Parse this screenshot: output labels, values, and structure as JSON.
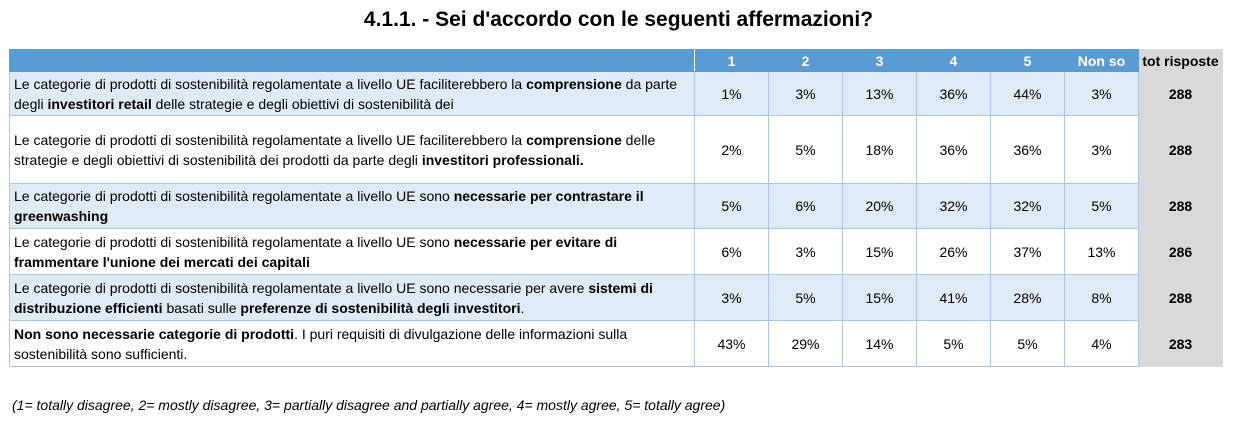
{
  "title": "4.1.1. - Sei d'accordo con le seguenti affermazioni?",
  "table": {
    "headers": [
      "",
      "1",
      "2",
      "3",
      "4",
      "5",
      "Non so",
      "tot risposte"
    ],
    "rows": [
      {
        "segments": [
          {
            "text": "Le categorie di prodotti di sostenibilità regolamentate a livello UE faciliterebbero la ",
            "bold": false
          },
          {
            "text": "comprensione",
            "bold": true
          },
          {
            "text": " da parte degli ",
            "bold": false
          },
          {
            "text": "investitori retail",
            "bold": true
          },
          {
            "text": " delle strategie e degli obiettivi di sostenibilità dei",
            "bold": false
          }
        ],
        "values": [
          "1%",
          "3%",
          "13%",
          "36%",
          "44%",
          "3%"
        ],
        "total": "288"
      },
      {
        "segments": [
          {
            "text": "Le categorie di prodotti di sostenibilità regolamentate a livello UE faciliterebbero la ",
            "bold": false
          },
          {
            "text": "comprensione",
            "bold": true
          },
          {
            "text": " delle strategie e degli obiettivi di sostenibilità dei prodotti da parte degli ",
            "bold": false
          },
          {
            "text": "investitori professionali.",
            "bold": true
          }
        ],
        "values": [
          "2%",
          "5%",
          "18%",
          "36%",
          "36%",
          "3%"
        ],
        "total": "288"
      },
      {
        "segments": [
          {
            "text": "Le categorie di prodotti di sostenibilità regolamentate a livello UE sono ",
            "bold": false
          },
          {
            "text": "necessarie per contrastare il greenwashing",
            "bold": true
          }
        ],
        "values": [
          "5%",
          "6%",
          "20%",
          "32%",
          "32%",
          "5%"
        ],
        "total": "288"
      },
      {
        "segments": [
          {
            "text": "Le categorie di prodotti di sostenibilità regolamentate a livello UE sono ",
            "bold": false
          },
          {
            "text": "necessarie per evitare di frammentare l'unione dei mercati dei capitali",
            "bold": true
          }
        ],
        "values": [
          "6%",
          "3%",
          "15%",
          "26%",
          "37%",
          "13%"
        ],
        "total": "286"
      },
      {
        "segments": [
          {
            "text": "Le categorie di prodotti di sostenibilità regolamentate a livello UE sono necessarie per avere ",
            "bold": false
          },
          {
            "text": "sistemi di distribuzione efficienti",
            "bold": true
          },
          {
            "text": " basati sulle ",
            "bold": false
          },
          {
            "text": "preferenze di sostenibilità degli investitori",
            "bold": true
          },
          {
            "text": ".",
            "bold": false
          }
        ],
        "values": [
          "3%",
          "5%",
          "15%",
          "41%",
          "28%",
          "8%"
        ],
        "total": "288"
      },
      {
        "segments": [
          {
            "text": "Non sono necessarie categorie di prodotti",
            "bold": true
          },
          {
            "text": ". I puri requisiti di divulgazione delle informazioni sulla sostenibilità sono sufficienti.",
            "bold": false
          }
        ],
        "values": [
          "43%",
          "29%",
          "14%",
          "5%",
          "5%",
          "4%"
        ],
        "total": "283"
      }
    ]
  },
  "legend": "(1= totally disagree, 2= mostly disagree, 3= partially disagree and partially agree, 4= mostly agree, 5= totally agree)",
  "colors": {
    "header_bg": "#5b9bd5",
    "row_shade": "#ddebf7",
    "total_bg": "#d9d9d9"
  }
}
